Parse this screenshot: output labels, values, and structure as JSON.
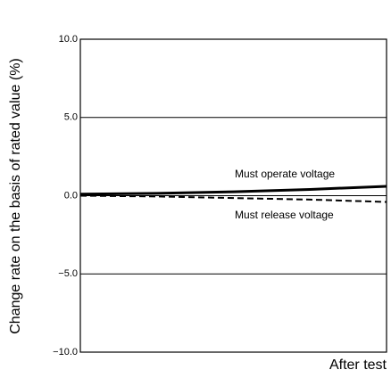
{
  "chart_data": {
    "type": "line",
    "y_label": "Change rate on the basis of rated value (%)",
    "x_label": "After test",
    "categories": [
      null,
      null,
      null,
      null,
      null
    ],
    "series": [
      {
        "name": "Must operate voltage",
        "color": "#000000",
        "dash": false,
        "values": [
          0.1,
          0.15,
          0.25,
          0.4,
          0.6
        ]
      },
      {
        "name": "Must release voltage",
        "color": "#000000",
        "dash": true,
        "values": [
          0.0,
          -0.05,
          -0.15,
          -0.25,
          -0.4
        ]
      }
    ],
    "ylim": [
      -10,
      10
    ],
    "yticks": [
      {
        "value": 10,
        "label": "10.0"
      },
      {
        "value": 5,
        "label": "5.0"
      },
      {
        "value": 0,
        "label": "0.0"
      },
      {
        "value": -5,
        "label": "−5.0"
      },
      {
        "value": -10,
        "label": "−10.0"
      }
    ],
    "grid": true
  }
}
